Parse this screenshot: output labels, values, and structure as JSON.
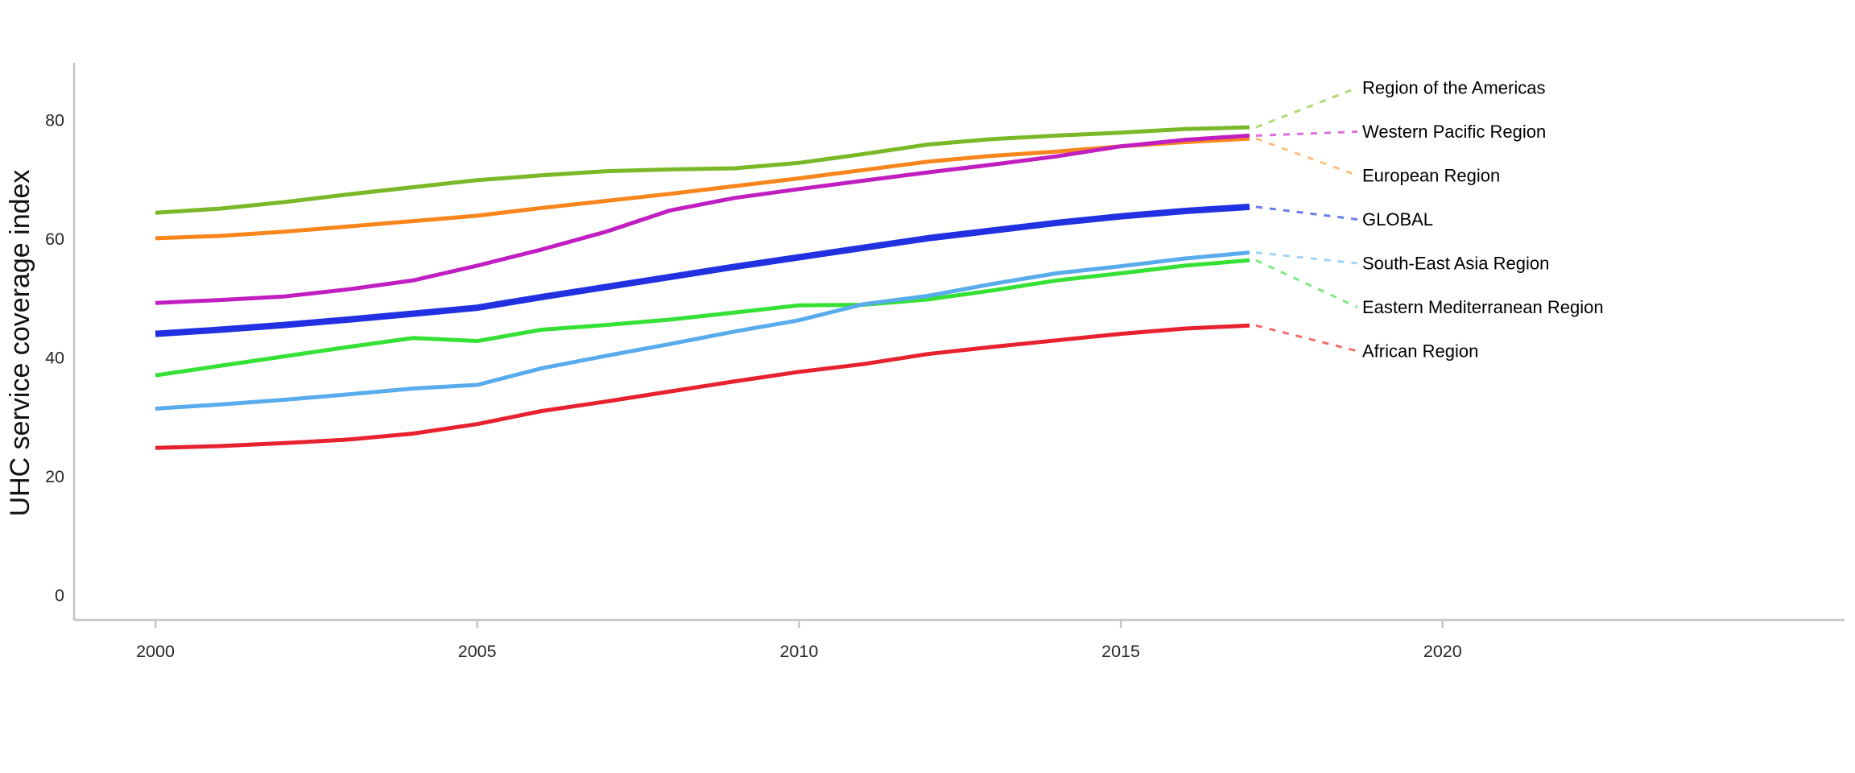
{
  "figure": {
    "background": "#ffffff",
    "axis_color": "#c5c5c5",
    "tick_text_color": "#262626"
  },
  "chart_data": {
    "type": "line",
    "title": "",
    "xlabel": "",
    "ylabel": "UHC service coverage index",
    "x": [
      2000,
      2001,
      2002,
      2003,
      2004,
      2005,
      2006,
      2007,
      2008,
      2009,
      2010,
      2011,
      2012,
      2013,
      2014,
      2015,
      2016,
      2017
    ],
    "x_ticks": [
      2000,
      2005,
      2010,
      2015,
      2020
    ],
    "y_ticks": [
      0,
      20,
      40,
      60,
      80
    ],
    "xlim": [
      1998.7,
      2026.3
    ],
    "ylim": [
      -4.2,
      89.7
    ],
    "grid": false,
    "legend_position": "right-end-labels",
    "series": [
      {
        "name": "Region of the Americas",
        "color": "#7ab827",
        "leader_color": "#aeda78",
        "line_width": 5,
        "values": [
          64.4,
          65.1,
          66.2,
          67.5,
          68.7,
          69.9,
          70.7,
          71.4,
          71.7,
          71.9,
          72.8,
          74.3,
          75.9,
          76.8,
          77.4,
          77.9,
          78.5,
          78.8
        ]
      },
      {
        "name": "Western Pacific Region",
        "color": "#c11ec1",
        "leader_color": "#e070e0",
        "line_width": 5,
        "values": [
          49.2,
          49.7,
          50.3,
          51.5,
          53.0,
          55.5,
          58.2,
          61.2,
          64.8,
          66.9,
          68.4,
          69.8,
          71.2,
          72.5,
          73.9,
          75.6,
          76.7,
          77.4
        ]
      },
      {
        "name": "European Region",
        "color": "#f8861c",
        "leader_color": "#fbc182",
        "line_width": 5,
        "values": [
          60.1,
          60.5,
          61.2,
          62.1,
          63.0,
          63.9,
          65.2,
          66.4,
          67.6,
          68.9,
          70.2,
          71.6,
          73.0,
          74.0,
          74.7,
          75.6,
          76.3,
          76.9
        ]
      },
      {
        "name": "GLOBAL",
        "color": "#2130e0",
        "leader_color": "#6b7de8",
        "line_width": 8,
        "values": [
          44.0,
          44.7,
          45.5,
          46.4,
          47.4,
          48.4,
          50.2,
          51.9,
          53.6,
          55.3,
          56.9,
          58.5,
          60.1,
          61.4,
          62.7,
          63.8,
          64.7,
          65.4
        ]
      },
      {
        "name": "South-East Asia Region",
        "color": "#58acec",
        "leader_color": "#a3d3f5",
        "line_width": 5,
        "values": [
          31.4,
          32.1,
          32.9,
          33.8,
          34.8,
          35.4,
          38.2,
          40.3,
          42.3,
          44.4,
          46.3,
          49.0,
          50.4,
          52.4,
          54.2,
          55.4,
          56.7,
          57.7
        ]
      },
      {
        "name": "Eastern Mediterranean Region",
        "color": "#35e135",
        "leader_color": "#83e883",
        "line_width": 5,
        "values": [
          37.0,
          38.6,
          40.2,
          41.8,
          43.3,
          42.8,
          44.7,
          45.5,
          46.4,
          47.6,
          48.8,
          48.9,
          49.8,
          51.3,
          53.0,
          54.2,
          55.5,
          56.4
        ]
      },
      {
        "name": "African Region",
        "color": "#e8212e",
        "leader_color": "#f26d6d",
        "line_width": 5,
        "values": [
          24.8,
          25.1,
          25.6,
          26.2,
          27.2,
          28.8,
          31.0,
          32.6,
          34.3,
          36.0,
          37.6,
          38.9,
          40.6,
          41.8,
          42.9,
          44.0,
          44.9,
          45.4
        ]
      }
    ]
  }
}
